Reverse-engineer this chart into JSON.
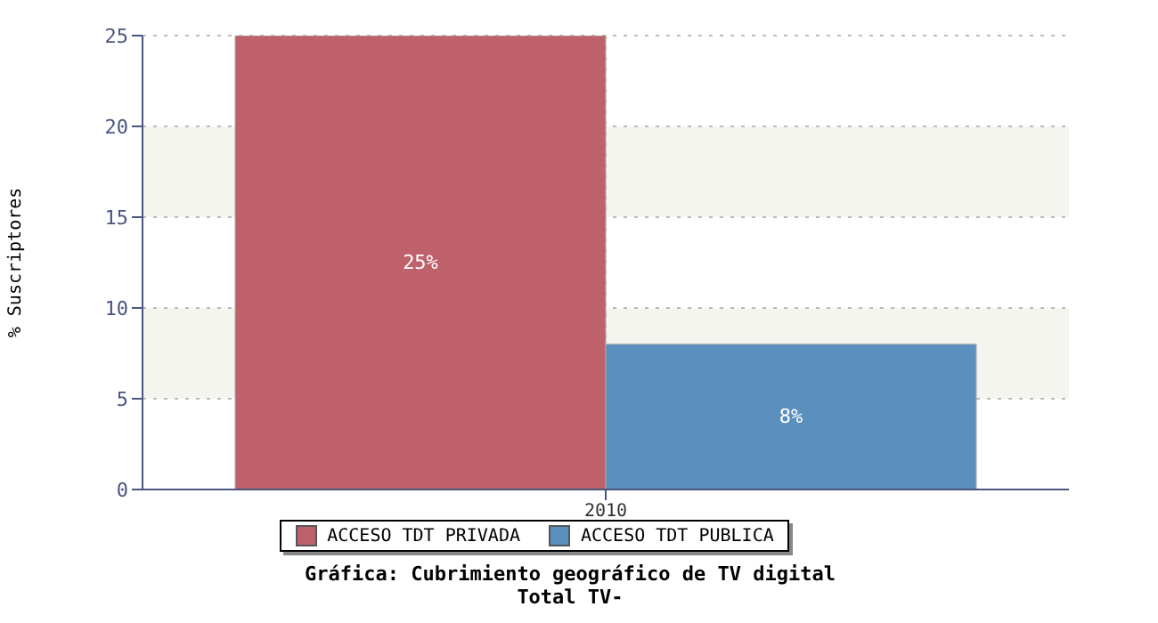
{
  "chart_data": {
    "type": "bar",
    "title": "Gráfica: Cubrimiento geográfico de TV digital",
    "subtitle": "Total TV-",
    "ylabel": "% Suscriptores",
    "categories": [
      "2010"
    ],
    "series": [
      {
        "name": "ACCESO TDT PRIVADA",
        "color": "#be616a",
        "values": [
          25
        ],
        "value_labels": [
          "25%"
        ]
      },
      {
        "name": "ACCESO TDT PUBLICA",
        "color": "#5b8fbd",
        "values": [
          8
        ],
        "value_labels": [
          "8%"
        ]
      }
    ],
    "ylim": [
      0,
      25
    ],
    "yticks": [
      0,
      5,
      10,
      15,
      20,
      25
    ],
    "grid": true,
    "legend": "bottom"
  }
}
